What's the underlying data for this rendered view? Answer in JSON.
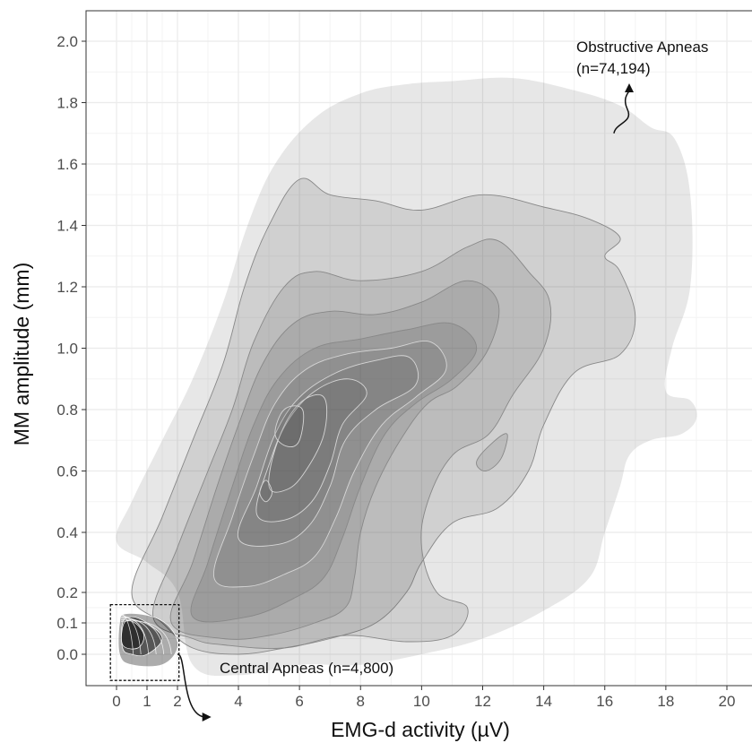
{
  "chart_data": {
    "type": "contour density",
    "xlabel": "EMG-d activity (µV)",
    "ylabel": "MM amplitude (mm)",
    "xlim": [
      -1,
      21
    ],
    "ylim": [
      -0.03,
      2.1
    ],
    "x_ticks": [
      0,
      1,
      2,
      4,
      6,
      8,
      10,
      12,
      14,
      16,
      18,
      20
    ],
    "x_tick_labels": [
      "0",
      "1",
      "2",
      "4",
      "6",
      "8",
      "10",
      "12",
      "14",
      "16",
      "18",
      "20"
    ],
    "y_ticks": [
      0.0,
      0.1,
      0.2,
      0.4,
      0.6,
      0.8,
      1.0,
      1.2,
      1.4,
      1.6,
      1.8,
      2.0
    ],
    "y_tick_labels": [
      "0.0",
      "0.1",
      "0.2",
      "0.4",
      "0.6",
      "0.8",
      "1.0",
      "1.2",
      "1.4",
      "1.6",
      "1.8",
      "2.0"
    ],
    "grid": true,
    "colors": {
      "panel_border": "#333333",
      "grid": "#ebebeb",
      "fill": "#444444",
      "contour_line": "#888888",
      "central": "#111111"
    },
    "annotations": [
      {
        "text": "Obstructive Apneas",
        "x": 15.3,
        "y": 1.9
      },
      {
        "text": "(n=74,194)",
        "x": 15.3,
        "y": 1.82
      },
      {
        "text": "Central Apneas (n=4,800)",
        "x": 3.1,
        "y": -0.05
      }
    ],
    "series": [
      {
        "name": "Obstructive Apneas",
        "n": 74194,
        "contours": [
          {
            "level": 1,
            "points": [
              [
                0,
                0.37
              ],
              [
                0.5,
                0.5
              ],
              [
                1.5,
                0.7
              ],
              [
                2.5,
                0.9
              ],
              [
                3.5,
                1.15
              ],
              [
                4.3,
                1.4
              ],
              [
                5.2,
                1.6
              ],
              [
                6.5,
                1.75
              ],
              [
                8,
                1.83
              ],
              [
                9.5,
                1.86
              ],
              [
                11,
                1.87
              ],
              [
                13,
                1.88
              ],
              [
                15,
                1.84
              ],
              [
                16.5,
                1.79
              ],
              [
                17.5,
                1.72
              ],
              [
                18.3,
                1.68
              ],
              [
                18.8,
                1.5
              ],
              [
                18.8,
                1.2
              ],
              [
                18.2,
                1.0
              ],
              [
                18.0,
                0.86
              ],
              [
                18.8,
                0.83
              ],
              [
                19.0,
                0.77
              ],
              [
                18.5,
                0.72
              ],
              [
                17.5,
                0.7
              ],
              [
                16.8,
                0.65
              ],
              [
                16.5,
                0.55
              ],
              [
                16.0,
                0.4
              ],
              [
                15.5,
                0.25
              ],
              [
                14.0,
                0.14
              ],
              [
                12.0,
                0.05
              ],
              [
                10.0,
                0.0
              ],
              [
                8.0,
                -0.01
              ],
              [
                6.0,
                -0.01
              ],
              [
                4.0,
                -0.02
              ],
              [
                2.5,
                -0.01
              ],
              [
                2.0,
                0.2
              ],
              [
                1.0,
                0.3
              ]
            ]
          },
          {
            "level": 2,
            "points": [
              [
                0.5,
                0.2
              ],
              [
                1.5,
                0.45
              ],
              [
                2.5,
                0.7
              ],
              [
                3.5,
                0.95
              ],
              [
                4.2,
                1.2
              ],
              [
                5.0,
                1.4
              ],
              [
                6.0,
                1.55
              ],
              [
                7.0,
                1.5
              ],
              [
                8.5,
                1.48
              ],
              [
                10,
                1.45
              ],
              [
                12,
                1.5
              ],
              [
                14,
                1.46
              ],
              [
                15.5,
                1.42
              ],
              [
                16.5,
                1.36
              ],
              [
                16.0,
                1.3
              ],
              [
                16.5,
                1.25
              ],
              [
                17.0,
                1.1
              ],
              [
                16.5,
                0.98
              ],
              [
                15.0,
                0.92
              ],
              [
                14.0,
                0.75
              ],
              [
                13.5,
                0.6
              ],
              [
                12.5,
                0.48
              ],
              [
                11.0,
                0.43
              ],
              [
                10.0,
                0.3
              ],
              [
                9.5,
                0.2
              ],
              [
                8.5,
                0.1
              ],
              [
                7.0,
                0.05
              ],
              [
                5.5,
                0.02
              ],
              [
                4.0,
                0.0
              ],
              [
                2.5,
                0.02
              ],
              [
                1.5,
                0.1
              ]
            ]
          },
          {
            "level": 3,
            "points": [
              [
                1.2,
                0.12
              ],
              [
                2.0,
                0.35
              ],
              [
                3.0,
                0.6
              ],
              [
                3.8,
                0.8
              ],
              [
                4.5,
                1.02
              ],
              [
                5.5,
                1.2
              ],
              [
                6.5,
                1.25
              ],
              [
                8.0,
                1.22
              ],
              [
                10.0,
                1.25
              ],
              [
                11.5,
                1.33
              ],
              [
                12.5,
                1.35
              ],
              [
                13.5,
                1.25
              ],
              [
                14.2,
                1.15
              ],
              [
                14.0,
                1.0
              ],
              [
                13.0,
                0.85
              ],
              [
                12.2,
                0.72
              ],
              [
                11.0,
                0.65
              ],
              [
                10.2,
                0.5
              ],
              [
                10.0,
                0.35
              ],
              [
                10.5,
                0.2
              ],
              [
                11.5,
                0.15
              ],
              [
                11.0,
                0.06
              ],
              [
                9.5,
                0.04
              ],
              [
                7.5,
                0.06
              ],
              [
                5.5,
                0.02
              ],
              [
                3.5,
                0.03
              ],
              [
                2.5,
                0.05
              ]
            ]
          },
          {
            "level": 4,
            "points": [
              [
                1.8,
                0.1
              ],
              [
                2.5,
                0.3
              ],
              [
                3.3,
                0.55
              ],
              [
                4.0,
                0.75
              ],
              [
                4.8,
                0.95
              ],
              [
                5.8,
                1.08
              ],
              [
                7.0,
                1.12
              ],
              [
                8.5,
                1.11
              ],
              [
                10.0,
                1.15
              ],
              [
                11.5,
                1.22
              ],
              [
                12.5,
                1.15
              ],
              [
                12.2,
                1.0
              ],
              [
                11.2,
                0.88
              ],
              [
                10.2,
                0.82
              ],
              [
                9.3,
                0.7
              ],
              [
                8.5,
                0.55
              ],
              [
                8.0,
                0.4
              ],
              [
                7.8,
                0.25
              ],
              [
                7.5,
                0.15
              ],
              [
                6.5,
                0.1
              ],
              [
                5.0,
                0.06
              ],
              [
                3.5,
                0.05
              ]
            ]
          },
          {
            "level": 5,
            "points": [
              [
                2.5,
                0.12
              ],
              [
                3.0,
                0.3
              ],
              [
                3.8,
                0.55
              ],
              [
                4.5,
                0.75
              ],
              [
                5.3,
                0.9
              ],
              [
                6.5,
                1.0
              ],
              [
                8.0,
                1.03
              ],
              [
                9.5,
                1.06
              ],
              [
                11.0,
                1.08
              ],
              [
                11.8,
                1.0
              ],
              [
                11.0,
                0.9
              ],
              [
                9.8,
                0.82
              ],
              [
                8.8,
                0.72
              ],
              [
                8.0,
                0.55
              ],
              [
                7.4,
                0.38
              ],
              [
                6.8,
                0.25
              ],
              [
                5.8,
                0.18
              ],
              [
                4.3,
                0.12
              ]
            ]
          },
          {
            "level": 6,
            "points": [
              [
                3.2,
                0.25
              ],
              [
                3.8,
                0.45
              ],
              [
                4.5,
                0.65
              ],
              [
                5.2,
                0.82
              ],
              [
                6.2,
                0.93
              ],
              [
                7.5,
                0.98
              ],
              [
                9.0,
                1.0
              ],
              [
                10.3,
                1.02
              ],
              [
                10.8,
                0.93
              ],
              [
                9.8,
                0.84
              ],
              [
                8.7,
                0.75
              ],
              [
                7.8,
                0.6
              ],
              [
                7.2,
                0.45
              ],
              [
                6.5,
                0.32
              ],
              [
                5.5,
                0.26
              ],
              [
                4.3,
                0.22
              ]
            ]
          },
          {
            "level": 7,
            "points": [
              [
                4.0,
                0.38
              ],
              [
                4.6,
                0.55
              ],
              [
                5.2,
                0.72
              ],
              [
                6.0,
                0.84
              ],
              [
                7.2,
                0.92
              ],
              [
                8.5,
                0.96
              ],
              [
                9.6,
                0.97
              ],
              [
                9.8,
                0.88
              ],
              [
                8.5,
                0.8
              ],
              [
                7.5,
                0.7
              ],
              [
                7.0,
                0.55
              ],
              [
                6.3,
                0.42
              ],
              [
                5.3,
                0.36
              ]
            ]
          },
          {
            "level": 8,
            "points": [
              [
                4.6,
                0.46
              ],
              [
                5.0,
                0.62
              ],
              [
                5.6,
                0.76
              ],
              [
                6.5,
                0.86
              ],
              [
                7.6,
                0.9
              ],
              [
                8.2,
                0.85
              ],
              [
                7.4,
                0.75
              ],
              [
                7.0,
                0.62
              ],
              [
                6.4,
                0.5
              ],
              [
                5.5,
                0.44
              ]
            ]
          },
          {
            "level": 9,
            "points": [
              [
                5.0,
                0.55
              ],
              [
                5.3,
                0.7
              ],
              [
                6.0,
                0.82
              ],
              [
                6.8,
                0.84
              ],
              [
                6.8,
                0.72
              ],
              [
                6.2,
                0.6
              ],
              [
                5.6,
                0.54
              ]
            ]
          },
          {
            "level": 10,
            "points": [
              [
                5.2,
                0.72
              ],
              [
                5.5,
                0.8
              ],
              [
                6.1,
                0.8
              ],
              [
                6.0,
                0.7
              ],
              [
                5.6,
                0.68
              ]
            ]
          },
          {
            "level": 10,
            "points": [
              [
                4.7,
                0.53
              ],
              [
                4.9,
                0.57
              ],
              [
                5.1,
                0.53
              ],
              [
                4.9,
                0.5
              ]
            ]
          },
          {
            "level": 4,
            "points": [
              [
                11.8,
                0.63
              ],
              [
                12.3,
                0.69
              ],
              [
                12.8,
                0.72
              ],
              [
                12.6,
                0.64
              ],
              [
                12.1,
                0.6
              ]
            ]
          }
        ]
      },
      {
        "name": "Central Apneas",
        "n": 4800,
        "contours": [
          {
            "level": 1,
            "points": [
              [
                0.1,
                0.0
              ],
              [
                0.1,
                0.1
              ],
              [
                0.3,
                0.13
              ],
              [
                1.2,
                0.12
              ],
              [
                1.8,
                0.08
              ],
              [
                2.0,
                0.02
              ],
              [
                1.5,
                -0.01
              ],
              [
                0.5,
                -0.01
              ]
            ]
          },
          {
            "level": 3,
            "points": [
              [
                0.2,
                0.02
              ],
              [
                0.2,
                0.1
              ],
              [
                0.5,
                0.12
              ],
              [
                1.0,
                0.1
              ],
              [
                1.5,
                0.05
              ],
              [
                1.0,
                0.0
              ],
              [
                0.5,
                0.0
              ]
            ]
          },
          {
            "level": 5,
            "points": [
              [
                0.2,
                0.03
              ],
              [
                0.25,
                0.1
              ],
              [
                0.6,
                0.1
              ],
              [
                0.9,
                0.06
              ],
              [
                0.7,
                0.02
              ]
            ]
          }
        ]
      }
    ]
  },
  "annotations_text": {
    "obstructive_title": "Obstructive Apneas",
    "obstructive_n": "(n=74,194)",
    "central": "Central Apneas (n=4,800)"
  }
}
